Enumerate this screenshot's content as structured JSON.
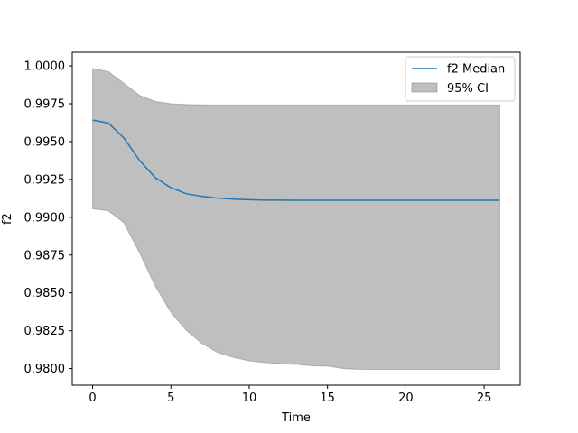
{
  "chart_data": {
    "type": "line",
    "title": "",
    "xlabel": "Time",
    "ylabel": "f2",
    "xlim": [
      -1.3,
      27.3
    ],
    "ylim": [
      0.9789,
      1.0009
    ],
    "xticks": [
      0,
      5,
      10,
      15,
      20,
      25
    ],
    "xtick_labels": [
      "0",
      "5",
      "10",
      "15",
      "20",
      "25"
    ],
    "yticks": [
      0.98,
      0.9825,
      0.985,
      0.9875,
      0.99,
      0.9925,
      0.995,
      0.9975,
      1.0
    ],
    "ytick_labels": [
      "0.9800",
      "0.9825",
      "0.9850",
      "0.9875",
      "0.9900",
      "0.9925",
      "0.9950",
      "0.9975",
      "1.0000"
    ],
    "grid": false,
    "legend_position": "top-right",
    "x": [
      0,
      1,
      2,
      3,
      4,
      5,
      6,
      7,
      8,
      9,
      10,
      11,
      12,
      13,
      14,
      15,
      16,
      17,
      18,
      19,
      20,
      21,
      22,
      23,
      24,
      25,
      26
    ],
    "series": [
      {
        "name": "f2 Median",
        "color": "#1f77b4",
        "values": [
          0.99642,
          0.99623,
          0.99524,
          0.99376,
          0.99262,
          0.99195,
          0.99155,
          0.99138,
          0.99126,
          0.9912,
          0.99116,
          0.99113,
          0.99113,
          0.99112,
          0.99112,
          0.99112,
          0.99112,
          0.99112,
          0.99112,
          0.99112,
          0.99112,
          0.99112,
          0.99112,
          0.99112,
          0.99112,
          0.99112,
          0.99112
        ]
      }
    ],
    "band": {
      "name": "95% CI",
      "color": "#808080",
      "opacity": 0.5,
      "upper": [
        0.99983,
        0.99963,
        0.99885,
        0.99805,
        0.99765,
        0.9975,
        0.99745,
        0.99743,
        0.99742,
        0.99742,
        0.99742,
        0.99742,
        0.99742,
        0.99742,
        0.99742,
        0.99742,
        0.99742,
        0.99742,
        0.99742,
        0.99742,
        0.99742,
        0.99742,
        0.99742,
        0.99742,
        0.99742,
        0.99742,
        0.99742
      ],
      "lower": [
        0.99056,
        0.99043,
        0.98963,
        0.98765,
        0.98545,
        0.98372,
        0.98251,
        0.98165,
        0.98105,
        0.98073,
        0.98051,
        0.9804,
        0.98032,
        0.98028,
        0.98018,
        0.98016,
        0.98,
        0.97995,
        0.97994,
        0.97994,
        0.97994,
        0.97994,
        0.97994,
        0.97994,
        0.97994,
        0.97994,
        0.97994
      ]
    }
  }
}
